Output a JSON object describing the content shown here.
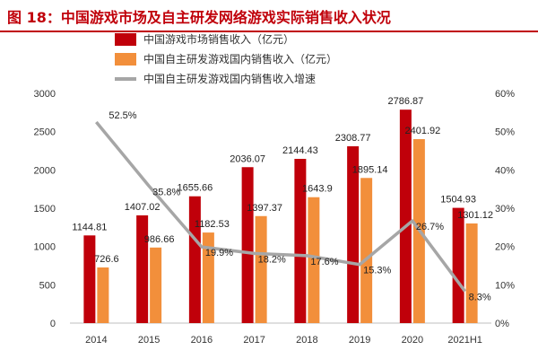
{
  "title": "图 18：中国游戏市场及自主研发网络游戏实际销售收入状况",
  "colors": {
    "title": "#c0000a",
    "market": "#c0000a",
    "domestic": "#f28f3b",
    "growth": "#a6a6a6"
  },
  "chart_data": {
    "type": "bar",
    "categories": [
      "2014",
      "2015",
      "2016",
      "2017",
      "2018",
      "2019",
      "2020",
      "2021H1"
    ],
    "series": [
      {
        "name": "中国游戏市场销售收入（亿元）",
        "type": "bar",
        "axis": "left",
        "values": [
          1144.81,
          1407.02,
          1655.66,
          2036.07,
          2144.43,
          2308.77,
          2786.87,
          1504.93
        ],
        "labels": [
          "1144.81",
          "1407.02",
          "1655.66",
          "2036.07",
          "2144.43",
          "2308.77",
          "2786.87",
          "1504.93"
        ]
      },
      {
        "name": "中国自主研发游戏国内销售收入（亿元）",
        "type": "bar",
        "axis": "left",
        "values": [
          726.6,
          986.66,
          1182.53,
          1397.37,
          1643.9,
          1895.14,
          2401.92,
          1301.12
        ],
        "labels": [
          "726.6",
          "986.66",
          "1182.53",
          "1397.37",
          "1643.9",
          "1895.14",
          "2401.92",
          "1301.12"
        ]
      },
      {
        "name": "中国自主研发游戏国内销售收入增速",
        "type": "line",
        "axis": "right",
        "values": [
          52.5,
          35.8,
          19.9,
          18.2,
          17.6,
          15.3,
          26.7,
          8.3
        ],
        "labels": [
          "52.5%",
          "35.8%",
          "19.9%",
          "18.2%",
          "17.6%",
          "15.3%",
          "26.7%",
          "8.3%"
        ]
      }
    ],
    "y_left": {
      "min": 0,
      "max": 3000,
      "ticks": [
        "0",
        "500",
        "1000",
        "1500",
        "2000",
        "2500",
        "3000"
      ]
    },
    "y_right": {
      "min": 0,
      "max": 60,
      "ticks": [
        "0%",
        "10%",
        "20%",
        "30%",
        "40%",
        "50%",
        "60%"
      ]
    },
    "grid": false,
    "legend_position": "top-center"
  }
}
